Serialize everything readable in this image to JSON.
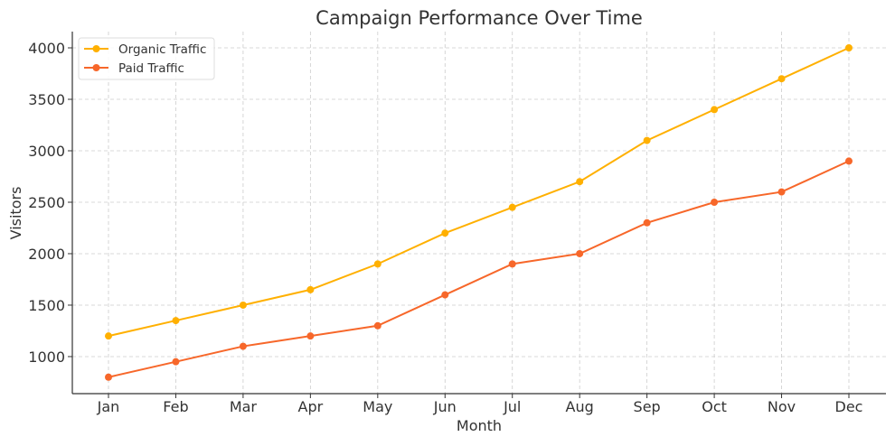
{
  "chart_data": {
    "type": "line",
    "title": "Campaign Performance Over Time",
    "xlabel": "Month",
    "ylabel": "Visitors",
    "categories": [
      "Jan",
      "Feb",
      "Mar",
      "Apr",
      "May",
      "Jun",
      "Jul",
      "Aug",
      "Sep",
      "Oct",
      "Nov",
      "Dec"
    ],
    "series": [
      {
        "name": "Organic Traffic",
        "color": "#FFB000",
        "values": [
          1200,
          1350,
          1500,
          1650,
          1900,
          2200,
          2450,
          2700,
          3100,
          3400,
          3700,
          4000
        ]
      },
      {
        "name": "Paid Traffic",
        "color": "#F7672A",
        "values": [
          800,
          950,
          1100,
          1200,
          1300,
          1600,
          1900,
          2000,
          2300,
          2500,
          2600,
          2900
        ]
      }
    ],
    "yticks": [
      "1000",
      "1500",
      "2000",
      "2500",
      "3000",
      "3500",
      "4000"
    ],
    "ylim": [
      640,
      4158
    ],
    "grid": true,
    "legend": "top-left"
  }
}
